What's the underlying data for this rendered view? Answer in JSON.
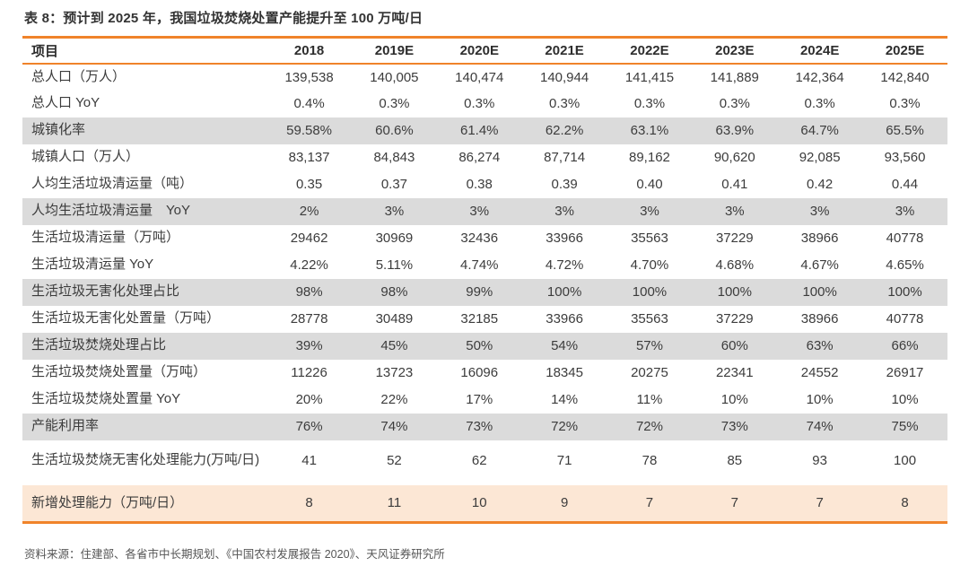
{
  "title": "表 8：预计到 2025 年，我国垃圾焚烧处置产能提升至 100 万吨/日",
  "source": "资料来源：住建部、各省市中长期规划、《中国农村发展报告 2020》、天风证券研究所",
  "colors": {
    "accent_orange": "#F0832A",
    "row_gray": "#DBDBDB",
    "row_peach": "#FCE7D5",
    "text_dark": "#3c3c3c",
    "source_gray": "#565656"
  },
  "chart_data": {
    "type": "table",
    "title": "预计到 2025 年，我国垃圾焚烧处置产能提升至 100 万吨/日",
    "columns": [
      "项目",
      "2018",
      "2019E",
      "2020E",
      "2021E",
      "2022E",
      "2023E",
      "2024E",
      "2025E"
    ],
    "rows": [
      {
        "label": "总人口（万人）",
        "highlight": "none",
        "tall": false,
        "values": [
          "139,538",
          "140,005",
          "140,474",
          "140,944",
          "141,415",
          "141,889",
          "142,364",
          "142,840"
        ]
      },
      {
        "label": "总人口 YoY",
        "highlight": "none",
        "tall": false,
        "values": [
          "0.4%",
          "0.3%",
          "0.3%",
          "0.3%",
          "0.3%",
          "0.3%",
          "0.3%",
          "0.3%"
        ]
      },
      {
        "label": "城镇化率",
        "highlight": "gray",
        "tall": false,
        "values": [
          "59.58%",
          "60.6%",
          "61.4%",
          "62.2%",
          "63.1%",
          "63.9%",
          "64.7%",
          "65.5%"
        ]
      },
      {
        "label": "城镇人口（万人）",
        "highlight": "none",
        "tall": false,
        "values": [
          "83,137",
          "84,843",
          "86,274",
          "87,714",
          "89,162",
          "90,620",
          "92,085",
          "93,560"
        ]
      },
      {
        "label": "人均生活垃圾清运量（吨）",
        "highlight": "none",
        "tall": false,
        "values": [
          "0.35",
          "0.37",
          "0.38",
          "0.39",
          "0.40",
          "0.41",
          "0.42",
          "0.44"
        ]
      },
      {
        "label": "人均生活垃圾清运量　YoY",
        "highlight": "gray",
        "tall": false,
        "values": [
          "2%",
          "3%",
          "3%",
          "3%",
          "3%",
          "3%",
          "3%",
          "3%"
        ]
      },
      {
        "label": "生活垃圾清运量（万吨）",
        "highlight": "none",
        "tall": false,
        "values": [
          "29462",
          "30969",
          "32436",
          "33966",
          "35563",
          "37229",
          "38966",
          "40778"
        ]
      },
      {
        "label": "生活垃圾清运量 YoY",
        "highlight": "none",
        "tall": false,
        "values": [
          "4.22%",
          "5.11%",
          "4.74%",
          "4.72%",
          "4.70%",
          "4.68%",
          "4.67%",
          "4.65%"
        ]
      },
      {
        "label": "生活垃圾无害化处理占比",
        "highlight": "gray",
        "tall": false,
        "values": [
          "98%",
          "98%",
          "99%",
          "100%",
          "100%",
          "100%",
          "100%",
          "100%"
        ]
      },
      {
        "label": "生活垃圾无害化处置量（万吨）",
        "highlight": "none",
        "tall": false,
        "values": [
          "28778",
          "30489",
          "32185",
          "33966",
          "35563",
          "37229",
          "38966",
          "40778"
        ]
      },
      {
        "label": "生活垃圾焚烧处理占比",
        "highlight": "gray",
        "tall": false,
        "values": [
          "39%",
          "45%",
          "50%",
          "54%",
          "57%",
          "60%",
          "63%",
          "66%"
        ]
      },
      {
        "label": "生活垃圾焚烧处置量（万吨）",
        "highlight": "none",
        "tall": false,
        "values": [
          "11226",
          "13723",
          "16096",
          "18345",
          "20275",
          "22341",
          "24552",
          "26917"
        ]
      },
      {
        "label": "生活垃圾焚烧处置量 YoY",
        "highlight": "none",
        "tall": false,
        "values": [
          "20%",
          "22%",
          "17%",
          "14%",
          "11%",
          "10%",
          "10%",
          "10%"
        ]
      },
      {
        "label": "产能利用率",
        "highlight": "gray",
        "tall": false,
        "values": [
          "76%",
          "74%",
          "73%",
          "72%",
          "72%",
          "73%",
          "74%",
          "75%"
        ]
      },
      {
        "label": "生活垃圾焚烧无害化处理能力(万吨/日)",
        "highlight": "none",
        "tall": true,
        "values": [
          "41",
          "52",
          "62",
          "71",
          "78",
          "85",
          "93",
          "100"
        ]
      },
      {
        "label": "新增处理能力（万吨/日）",
        "highlight": "peach",
        "tall": false,
        "values": [
          "8",
          "11",
          "10",
          "9",
          "7",
          "7",
          "7",
          "8"
        ]
      }
    ]
  }
}
